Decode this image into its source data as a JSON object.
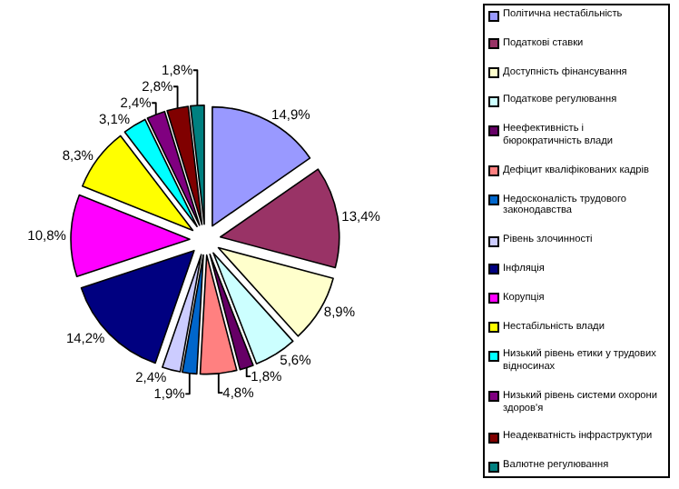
{
  "chart_data": {
    "type": "pie",
    "categories": [
      "Політична нестабільність",
      "Податкові ставки",
      "Доступність фінансування",
      "Податкове регулювання",
      "Неефективність і бюрократичність влади",
      "Дефіцит кваліфікованих кадрів",
      "Недосконалість трудового законодавства",
      "Рівень злочинності",
      "Інфляція",
      "Корупція",
      "Нестабільність влади",
      "Низький рівень етики у трудових відносинах",
      "Низький рівень системи охорони здоров'я",
      "Неадекватність інфраструктури",
      "Валютне регулювання"
    ],
    "values": [
      14.9,
      13.4,
      8.9,
      5.6,
      1.8,
      4.8,
      1.9,
      2.4,
      14.2,
      10.8,
      8.3,
      3.1,
      2.4,
      2.8,
      1.8
    ],
    "value_labels": [
      "14,9%",
      "13,4%",
      "8,9%",
      "5,6%",
      "1,8%",
      "4,8%",
      "1,9%",
      "2,4%",
      "14,2%",
      "10,8%",
      "8,3%",
      "3,1%",
      "2,4%",
      "2,8%",
      "1,8%"
    ],
    "colors": [
      "#9999ff",
      "#993366",
      "#ffffcc",
      "#ccffff",
      "#660066",
      "#ff8080",
      "#0066cc",
      "#ccccff",
      "#000080",
      "#ff00ff",
      "#ffff00",
      "#00ffff",
      "#800080",
      "#800000",
      "#008080"
    ],
    "legend": "right"
  }
}
